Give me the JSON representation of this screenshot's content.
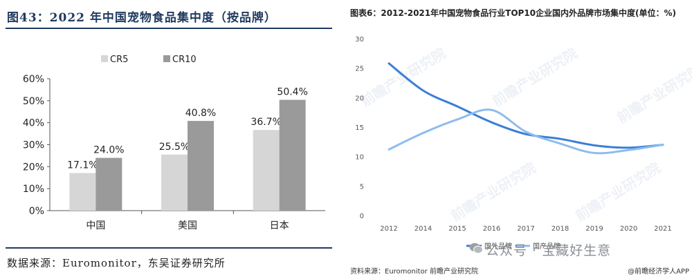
{
  "left_panel": {
    "title": "图43：2022 年中国宠物食品集中度（按品牌）",
    "source": "数据来源：Euromonitor，东吴证券研究所"
  },
  "right_panel": {
    "title": "图表6：2012-2021年中国宠物食品行业TOP10企业国内外品牌市场集中度(单位：%)",
    "source": "资料来源：Euromonitor 前瞻产业研究院",
    "credit": "@前瞻经济学人APP",
    "watermark_text": "前瞻产业研究院",
    "overlay_text": "公众号 · 宝藏好生意"
  },
  "colors": {
    "cr5": "#d6d6d6",
    "cr10": "#9a9a9a",
    "foreign": "#3b7fd4",
    "domestic": "#8dbcef",
    "rule": "#1f3a5f"
  },
  "chart_data": [
    {
      "type": "bar",
      "categories": [
        "中国",
        "美国",
        "日本"
      ],
      "series": [
        {
          "name": "CR5",
          "values": [
            17.1,
            25.5,
            36.7
          ],
          "labels": [
            "17.1%",
            "25.5%",
            "36.7%"
          ]
        },
        {
          "name": "CR10",
          "values": [
            24.0,
            40.8,
            50.4
          ],
          "labels": [
            "24.0%",
            "40.8%",
            "50.4%"
          ]
        }
      ],
      "ylim": [
        0,
        60
      ],
      "yticks": [
        "0%",
        "10%",
        "20%",
        "30%",
        "40%",
        "50%",
        "60%"
      ],
      "legend_position": "top"
    },
    {
      "type": "line",
      "x": [
        "2012",
        "2014",
        "2015",
        "2016",
        "2017",
        "2018",
        "2019",
        "2020",
        "2021"
      ],
      "series": [
        {
          "name": "国外品牌",
          "values": [
            25.8,
            21.2,
            18.5,
            15.8,
            13.8,
            13.0,
            11.9,
            11.5,
            12.0
          ]
        },
        {
          "name": "国产品牌",
          "values": [
            11.2,
            14.0,
            16.3,
            17.9,
            14.2,
            12.2,
            10.6,
            11.1,
            12.0
          ]
        }
      ],
      "ylim": [
        0,
        30
      ],
      "yticks": [
        "0",
        "5",
        "10",
        "15",
        "20",
        "25",
        "30"
      ],
      "grid": false,
      "legend_position": "bottom-left"
    }
  ]
}
